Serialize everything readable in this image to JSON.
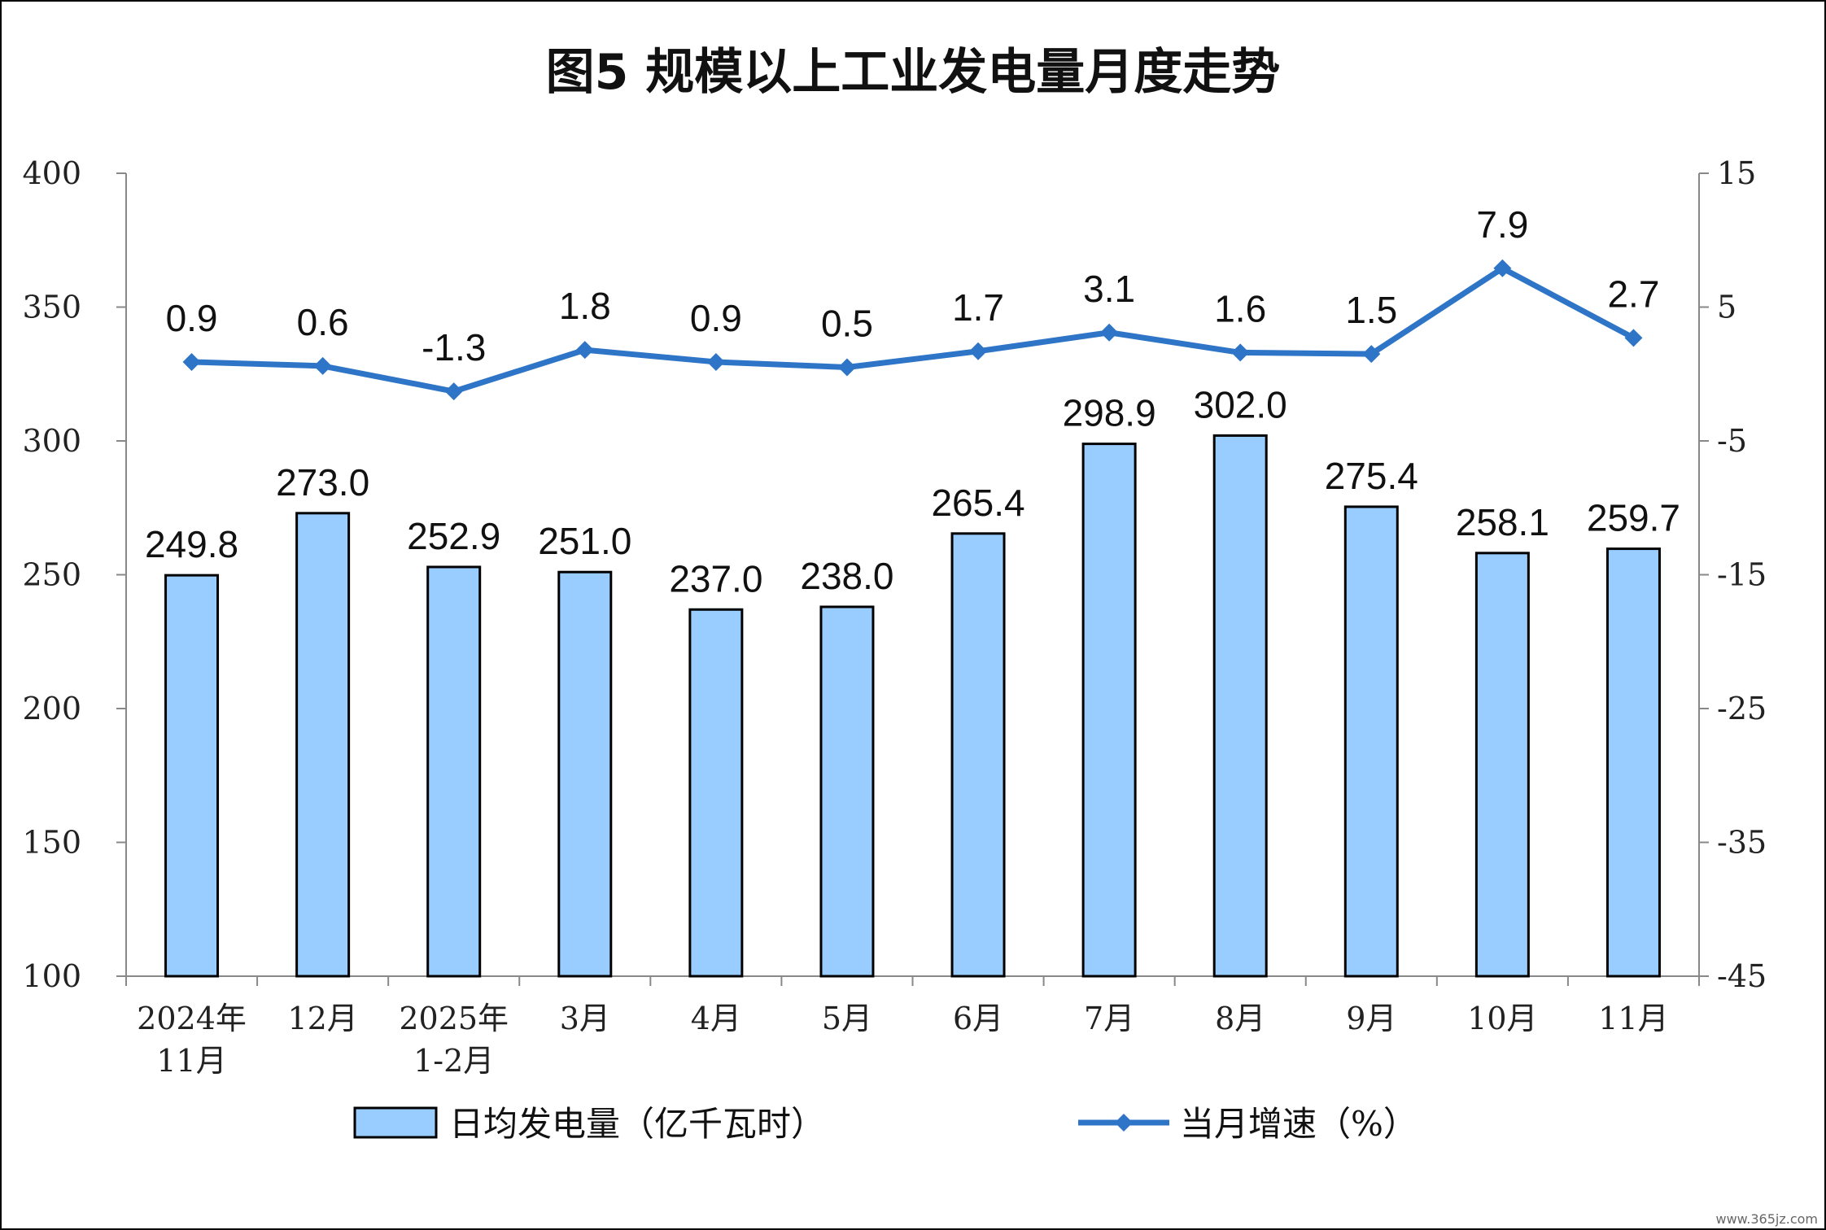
{
  "chart_data": {
    "type": "bar",
    "title": "图5  规模以上工业发电量月度走势",
    "categories": [
      [
        "2024年",
        "11月"
      ],
      [
        "12月"
      ],
      [
        "2025年",
        "1-2月"
      ],
      [
        "3月"
      ],
      [
        "4月"
      ],
      [
        "5月"
      ],
      [
        "6月"
      ],
      [
        "7月"
      ],
      [
        "8月"
      ],
      [
        "9月"
      ],
      [
        "10月"
      ],
      [
        "11月"
      ]
    ],
    "series": [
      {
        "name": "日均发电量（亿千瓦时）",
        "type": "bar",
        "axis": "left",
        "values": [
          249.8,
          273.0,
          252.9,
          251.0,
          237.0,
          238.0,
          265.4,
          298.9,
          302.0,
          275.4,
          258.1,
          259.7
        ],
        "labels": [
          "249.8",
          "273.0",
          "252.9",
          "251.0",
          "237.0",
          "238.0",
          "265.4",
          "298.9",
          "302.0",
          "275.4",
          "258.1",
          "259.7"
        ]
      },
      {
        "name": "当月增速（%）",
        "type": "line",
        "axis": "right",
        "values": [
          0.9,
          0.6,
          -1.3,
          1.8,
          0.9,
          0.5,
          1.7,
          3.1,
          1.6,
          1.5,
          7.9,
          2.7
        ],
        "labels": [
          "0.9",
          "0.6",
          "-1.3",
          "1.8",
          "0.9",
          "0.5",
          "1.7",
          "3.1",
          "1.6",
          "1.5",
          "7.9",
          "2.7"
        ]
      }
    ],
    "y_left": {
      "min": 100,
      "max": 400,
      "ticks": [
        "100",
        "150",
        "200",
        "250",
        "300",
        "350",
        "400"
      ]
    },
    "y_right": {
      "min": -45,
      "max": 15,
      "ticks": [
        "-45",
        "-35",
        "-25",
        "-15",
        "-5",
        "5",
        "15"
      ]
    },
    "legend": {
      "position": "bottom",
      "items": [
        "日均发电量（亿千瓦时）",
        "当月增速（%）"
      ]
    },
    "colors": {
      "bar_fill": "#99CCFF",
      "bar_stroke": "#000000",
      "line": "#2E75C8"
    },
    "grid": false
  },
  "watermark": "www.365jz.com"
}
